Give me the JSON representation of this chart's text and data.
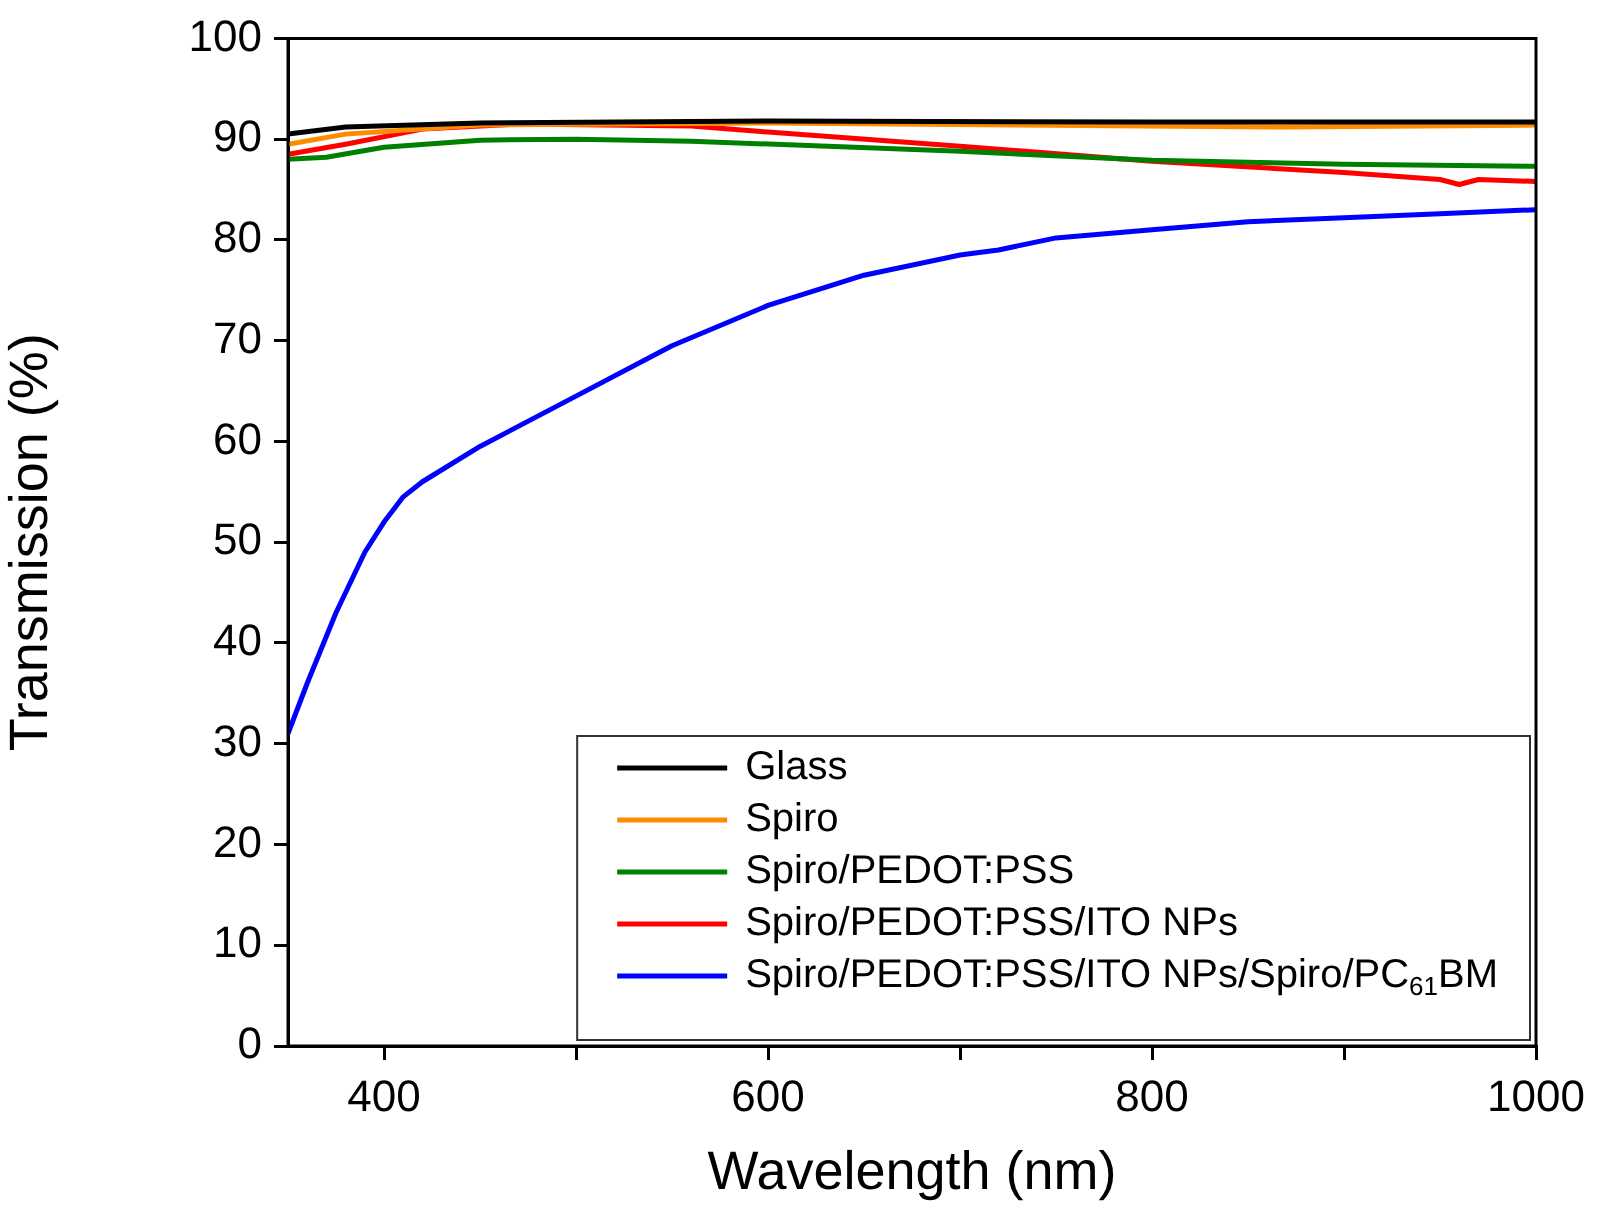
{
  "chart_data": {
    "type": "line",
    "xlabel": "Wavelength (nm)",
    "ylabel": "Transmission (%)",
    "xlim": [
      350,
      1000
    ],
    "xticks": [
      400,
      {
        "value": 500,
        "label": null
      },
      600,
      {
        "value": 700,
        "label": null
      },
      800,
      {
        "value": 900,
        "label": null
      },
      1000
    ],
    "ylim": [
      0,
      100
    ],
    "yticks": [
      0,
      10,
      20,
      30,
      40,
      50,
      60,
      70,
      80,
      90,
      100
    ],
    "grid": false,
    "legend": "bottom right",
    "marker": "none",
    "line_style": "solid",
    "series": [
      {
        "name": "Glass",
        "color": "#000000",
        "x": [
          350,
          380,
          450,
          600,
          800,
          1000
        ],
        "values": [
          90.5,
          91.2,
          91.6,
          91.8,
          91.7,
          91.7
        ]
      },
      {
        "name": "Spiro",
        "color": "#ff8c00",
        "x": [
          350,
          380,
          450,
          600,
          870,
          1000
        ],
        "values": [
          89.5,
          90.5,
          91.4,
          91.6,
          91.2,
          91.4
        ]
      },
      {
        "name": "Spiro/PEDOT:PSS",
        "color": "#008000",
        "x": [
          350,
          370,
          400,
          450,
          500,
          560,
          700,
          800,
          900,
          1000
        ],
        "values": [
          88,
          88.2,
          89.2,
          89.9,
          90,
          89.8,
          88.8,
          87.9,
          87.5,
          87.3
        ]
      },
      {
        "name": "Spiro/PEDOT:PSS/ITO NPs",
        "color": "#ff0000",
        "x": [
          350,
          380,
          420,
          470,
          560,
          600,
          700,
          800,
          900,
          950,
          960,
          970,
          1000
        ],
        "values": [
          88.5,
          89.5,
          91,
          91.5,
          91.3,
          90.7,
          89.3,
          87.8,
          86.7,
          86,
          85.5,
          86,
          85.8
        ]
      },
      {
        "name": "Spiro/PEDOT:PSS/ITO NPs/Spiro/PC$_{61}$BM",
        "color": "#0000ff",
        "x": [
          350,
          360,
          375,
          390,
          400,
          410,
          420,
          450,
          500,
          550,
          600,
          650,
          700,
          720,
          750,
          800,
          850,
          900,
          950,
          1000
        ],
        "values": [
          31,
          36,
          43,
          49,
          52,
          54.5,
          56,
          59.5,
          64.5,
          69.5,
          73.5,
          76.5,
          78.5,
          79,
          80.2,
          81,
          81.8,
          82.2,
          82.6,
          83
        ]
      }
    ]
  }
}
